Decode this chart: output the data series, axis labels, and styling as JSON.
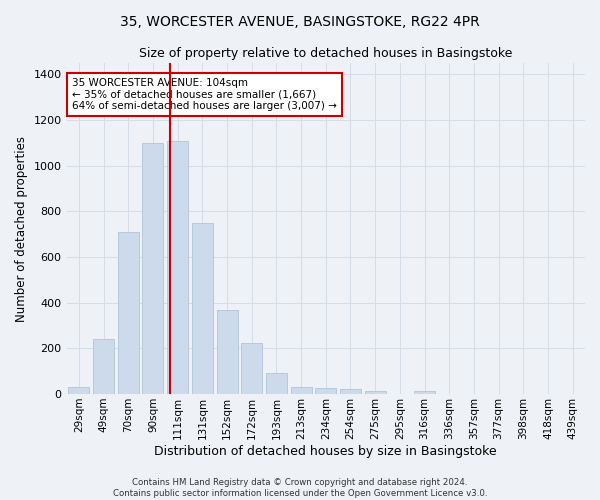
{
  "title": "35, WORCESTER AVENUE, BASINGSTOKE, RG22 4PR",
  "subtitle": "Size of property relative to detached houses in Basingstoke",
  "xlabel": "Distribution of detached houses by size in Basingstoke",
  "ylabel": "Number of detached properties",
  "bar_labels": [
    "29sqm",
    "49sqm",
    "70sqm",
    "90sqm",
    "111sqm",
    "131sqm",
    "152sqm",
    "172sqm",
    "193sqm",
    "213sqm",
    "234sqm",
    "254sqm",
    "275sqm",
    "295sqm",
    "316sqm",
    "336sqm",
    "357sqm",
    "377sqm",
    "398sqm",
    "418sqm",
    "439sqm"
  ],
  "bar_values": [
    30,
    240,
    710,
    1100,
    1110,
    750,
    370,
    225,
    90,
    30,
    25,
    20,
    15,
    0,
    12,
    0,
    0,
    0,
    0,
    0,
    0
  ],
  "bar_color": "#ccdaeb",
  "bar_edge_color": "#a8bfd4",
  "grid_color": "#d4dce6",
  "bg_color": "#eef2f7",
  "vline_color": "#cc0000",
  "vline_x": 3.7,
  "annotation_text": "35 WORCESTER AVENUE: 104sqm\n← 35% of detached houses are smaller (1,667)\n64% of semi-detached houses are larger (3,007) →",
  "annotation_box_color": "#ffffff",
  "annotation_box_edge_color": "#cc0000",
  "footnote": "Contains HM Land Registry data © Crown copyright and database right 2024.\nContains public sector information licensed under the Open Government Licence v3.0.",
  "ylim": [
    0,
    1450
  ],
  "yticks": [
    0,
    200,
    400,
    600,
    800,
    1000,
    1200,
    1400
  ],
  "title_fontsize": 10,
  "subtitle_fontsize": 9,
  "ylabel_fontsize": 8.5,
  "xlabel_fontsize": 9,
  "tick_fontsize": 7.5,
  "annot_fontsize": 7.5,
  "footnote_fontsize": 6.2
}
